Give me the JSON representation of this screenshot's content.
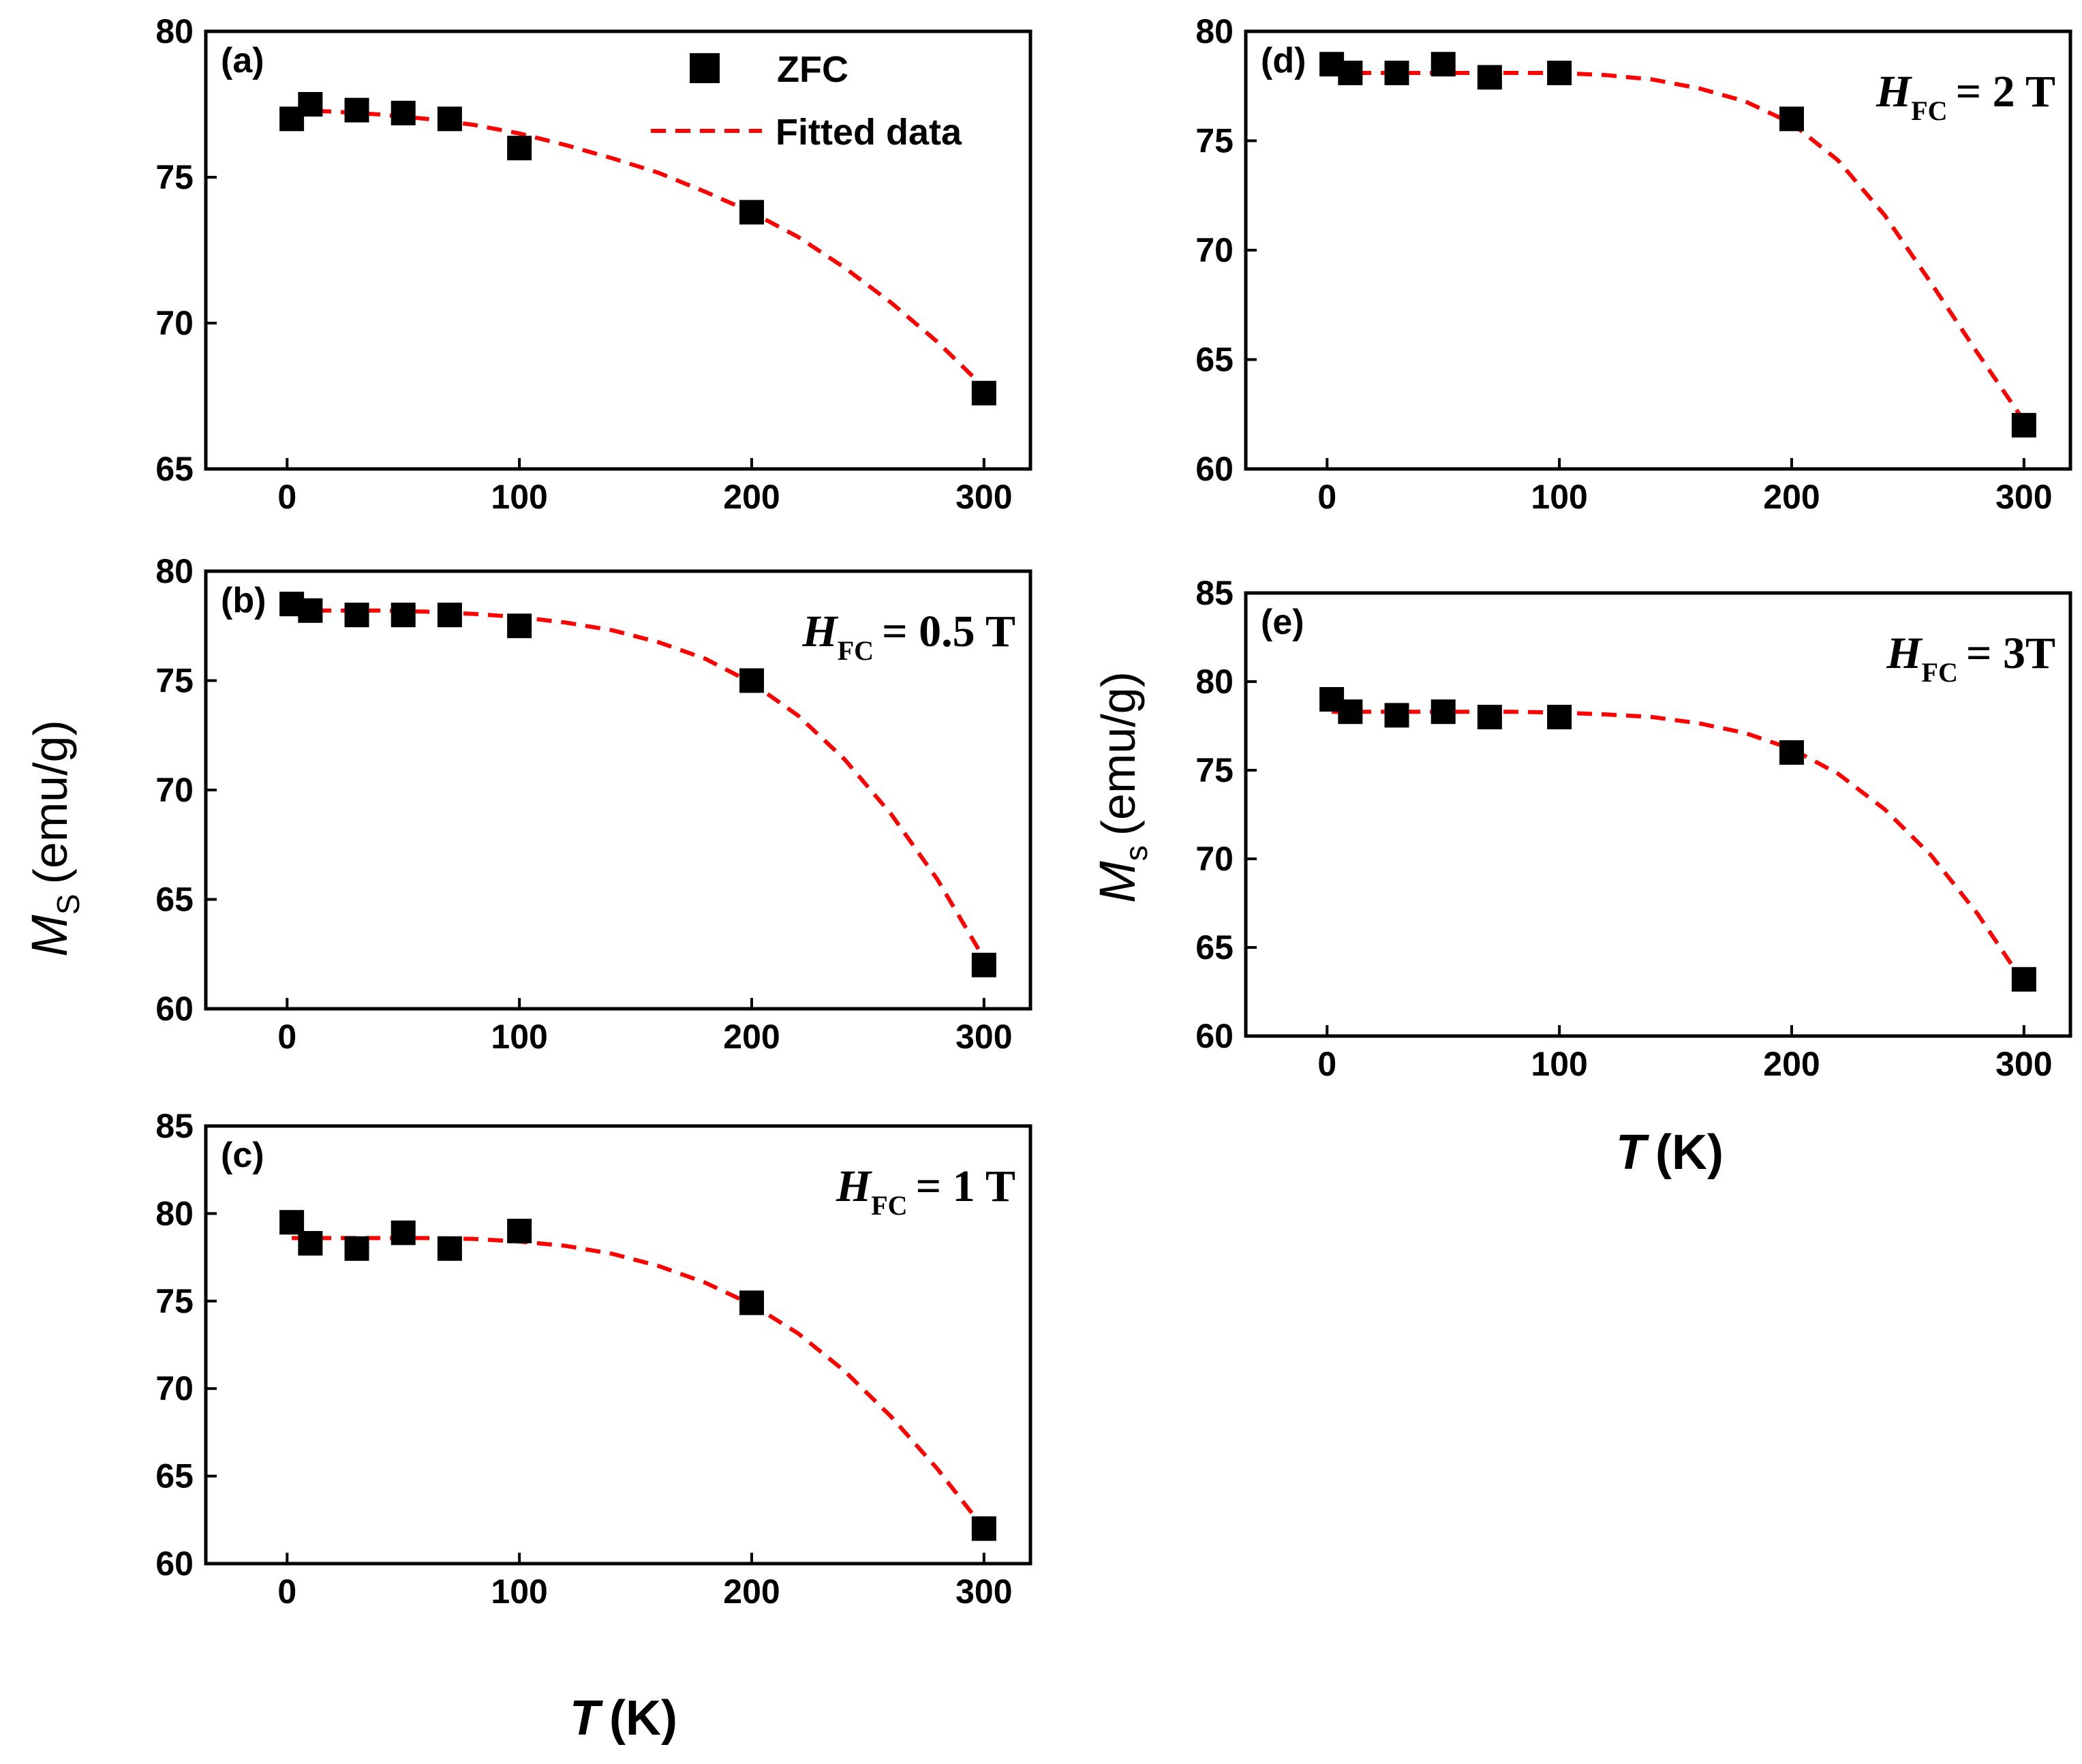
{
  "chart_data": [
    {
      "id": "a",
      "type": "scatter",
      "panel_label": "(a)",
      "annotation": null,
      "legend": {
        "markers_label": "ZFC",
        "fit_label": "Fitted data"
      },
      "xlim": [
        -35,
        320
      ],
      "ylim": [
        65,
        80
      ],
      "xticks": [
        "0",
        "100",
        "200",
        "300"
      ],
      "xtick_values": [
        0,
        100,
        200,
        300
      ],
      "yticks": [
        "65",
        "70",
        "75",
        "80"
      ],
      "ytick_values": [
        65,
        70,
        75,
        80
      ],
      "points": {
        "x": [
          2,
          10,
          30,
          50,
          70,
          100,
          200,
          300
        ],
        "y": [
          77.0,
          77.5,
          77.3,
          77.2,
          77.0,
          76.0,
          73.8,
          67.6
        ]
      },
      "fit": {
        "x": [
          2,
          20,
          40,
          60,
          80,
          100,
          120,
          140,
          160,
          180,
          200,
          220,
          240,
          260,
          280,
          300
        ],
        "y": [
          77.3,
          77.25,
          77.15,
          77.0,
          76.8,
          76.5,
          76.1,
          75.65,
          75.15,
          74.5,
          73.8,
          72.95,
          71.9,
          70.7,
          69.35,
          67.8
        ]
      }
    },
    {
      "id": "b",
      "type": "scatter",
      "panel_label": "(b)",
      "annotation": {
        "H": "H",
        "sub": "FC",
        "value": "= 0.5 T"
      },
      "xlim": [
        -35,
        320
      ],
      "ylim": [
        60,
        80
      ],
      "xticks": [
        "0",
        "100",
        "200",
        "300"
      ],
      "xtick_values": [
        0,
        100,
        200,
        300
      ],
      "yticks": [
        "60",
        "65",
        "70",
        "75",
        "80"
      ],
      "ytick_values": [
        60,
        65,
        70,
        75,
        80
      ],
      "points": {
        "x": [
          2,
          10,
          30,
          50,
          70,
          100,
          200,
          300
        ],
        "y": [
          78.5,
          78.2,
          78.0,
          78.0,
          78.0,
          77.5,
          75.0,
          62.0
        ]
      },
      "fit": {
        "x": [
          2,
          20,
          40,
          60,
          80,
          100,
          120,
          140,
          160,
          180,
          200,
          220,
          240,
          260,
          280,
          300
        ],
        "y": [
          78.2,
          78.2,
          78.2,
          78.15,
          78.05,
          77.9,
          77.65,
          77.3,
          76.75,
          76.0,
          74.9,
          73.4,
          71.4,
          68.9,
          65.9,
          62.3
        ]
      }
    },
    {
      "id": "c",
      "type": "scatter",
      "panel_label": "(c)",
      "annotation": {
        "H": "H",
        "sub": "FC",
        "value": "= 1 T"
      },
      "xlim": [
        -35,
        320
      ],
      "ylim": [
        60,
        85
      ],
      "xticks": [
        "0",
        "100",
        "200",
        "300"
      ],
      "xtick_values": [
        0,
        100,
        200,
        300
      ],
      "yticks": [
        "60",
        "65",
        "70",
        "75",
        "80",
        "85"
      ],
      "ytick_values": [
        60,
        65,
        70,
        75,
        80,
        85
      ],
      "points": {
        "x": [
          2,
          10,
          30,
          50,
          70,
          100,
          200,
          300
        ],
        "y": [
          79.5,
          78.3,
          78.0,
          78.9,
          78.0,
          79.0,
          74.9,
          62.0
        ]
      },
      "fit": {
        "x": [
          2,
          20,
          40,
          60,
          80,
          100,
          120,
          140,
          160,
          180,
          200,
          220,
          240,
          260,
          280,
          300
        ],
        "y": [
          78.6,
          78.6,
          78.6,
          78.6,
          78.55,
          78.4,
          78.15,
          77.7,
          77.0,
          76.05,
          74.8,
          73.15,
          71.0,
          68.4,
          65.4,
          62.0
        ]
      }
    },
    {
      "id": "d",
      "type": "scatter",
      "panel_label": "(d)",
      "annotation": {
        "H": "H",
        "sub": "FC",
        "value": "= 2 T"
      },
      "xlim": [
        -35,
        320
      ],
      "ylim": [
        60,
        80
      ],
      "xticks": [
        "0",
        "100",
        "200",
        "300"
      ],
      "xtick_values": [
        0,
        100,
        200,
        300
      ],
      "yticks": [
        "60",
        "65",
        "70",
        "75",
        "80"
      ],
      "ytick_values": [
        60,
        65,
        70,
        75,
        80
      ],
      "points": {
        "x": [
          2,
          10,
          30,
          50,
          70,
          100,
          200,
          300
        ],
        "y": [
          78.5,
          78.1,
          78.1,
          78.5,
          77.9,
          78.1,
          76.0,
          62.0
        ]
      },
      "fit": {
        "x": [
          2,
          20,
          40,
          60,
          80,
          100,
          120,
          140,
          160,
          180,
          200,
          220,
          240,
          260,
          280,
          300
        ],
        "y": [
          78.1,
          78.1,
          78.1,
          78.1,
          78.1,
          78.1,
          78.0,
          77.8,
          77.4,
          76.8,
          75.8,
          74.1,
          71.6,
          68.5,
          65.3,
          62.2
        ]
      }
    },
    {
      "id": "e",
      "type": "scatter",
      "panel_label": "(e)",
      "annotation": {
        "H": "H",
        "sub": "FC",
        "value": "= 3T"
      },
      "xlim": [
        -35,
        320
      ],
      "ylim": [
        60,
        85
      ],
      "xticks": [
        "0",
        "100",
        "200",
        "300"
      ],
      "xtick_values": [
        0,
        100,
        200,
        300
      ],
      "yticks": [
        "60",
        "65",
        "70",
        "75",
        "80",
        "85"
      ],
      "ytick_values": [
        60,
        65,
        70,
        75,
        80,
        85
      ],
      "points": {
        "x": [
          2,
          10,
          30,
          50,
          70,
          100,
          200,
          300
        ],
        "y": [
          79.0,
          78.3,
          78.1,
          78.3,
          78.0,
          78.0,
          76.0,
          63.2
        ]
      },
      "fit": {
        "x": [
          2,
          20,
          40,
          60,
          80,
          100,
          120,
          140,
          160,
          180,
          200,
          220,
          240,
          260,
          280,
          300
        ],
        "y": [
          78.3,
          78.3,
          78.3,
          78.3,
          78.3,
          78.25,
          78.15,
          78.0,
          77.65,
          77.1,
          76.2,
          74.8,
          72.8,
          70.2,
          66.9,
          63.0
        ]
      }
    }
  ],
  "labels": {
    "ylabel_left": {
      "symbol": "M",
      "sub": "S",
      "unit": "(emu/g)"
    },
    "ylabel_right": {
      "symbol": "M",
      "sub": "s",
      "unit": "(emu/g)"
    },
    "xlabel_left": {
      "symbol": "T",
      "unit": "(K)"
    },
    "xlabel_right": {
      "symbol": "T",
      "unit": "(K)"
    }
  },
  "colors": {
    "marker": "#000000",
    "fit": "#ff0000",
    "axes": "#000000"
  }
}
